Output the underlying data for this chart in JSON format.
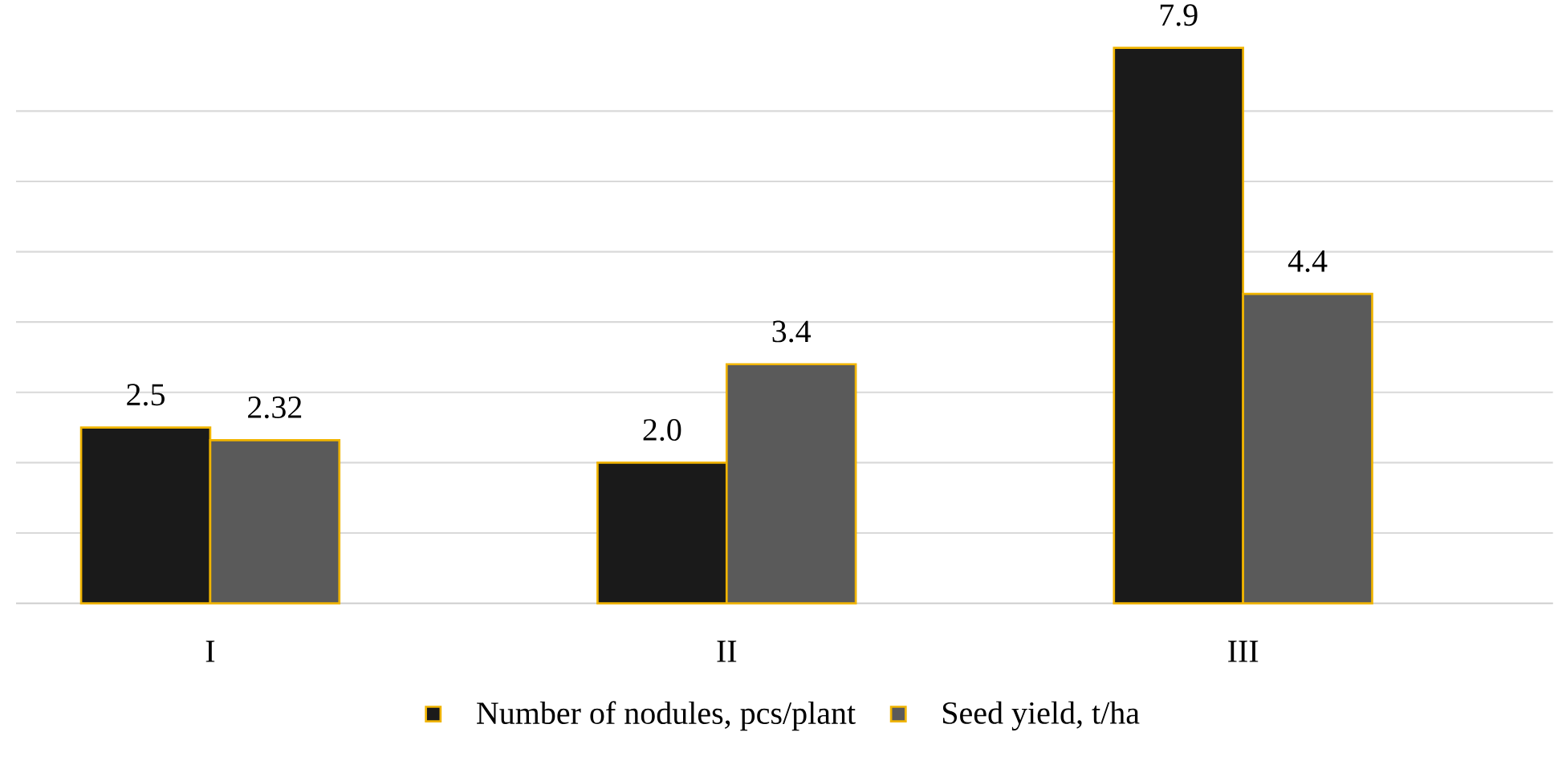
{
  "chart_data": {
    "type": "bar",
    "categories": [
      "I",
      "II",
      "III"
    ],
    "series": [
      {
        "name": "Number of nodules, pcs/plant",
        "color": "#1a1a1a",
        "values": [
          2.5,
          2.0,
          7.9
        ],
        "value_labels": [
          "2.5",
          "2.0",
          "7.9"
        ]
      },
      {
        "name": "Seed yield, t/ha",
        "color": "#5a5a5a",
        "values": [
          2.32,
          3.4,
          4.4
        ],
        "value_labels": [
          "2.32",
          "3.4",
          "4.4"
        ]
      }
    ],
    "tick_labels": "x",
    "grid": "y",
    "legend": "bottom"
  }
}
